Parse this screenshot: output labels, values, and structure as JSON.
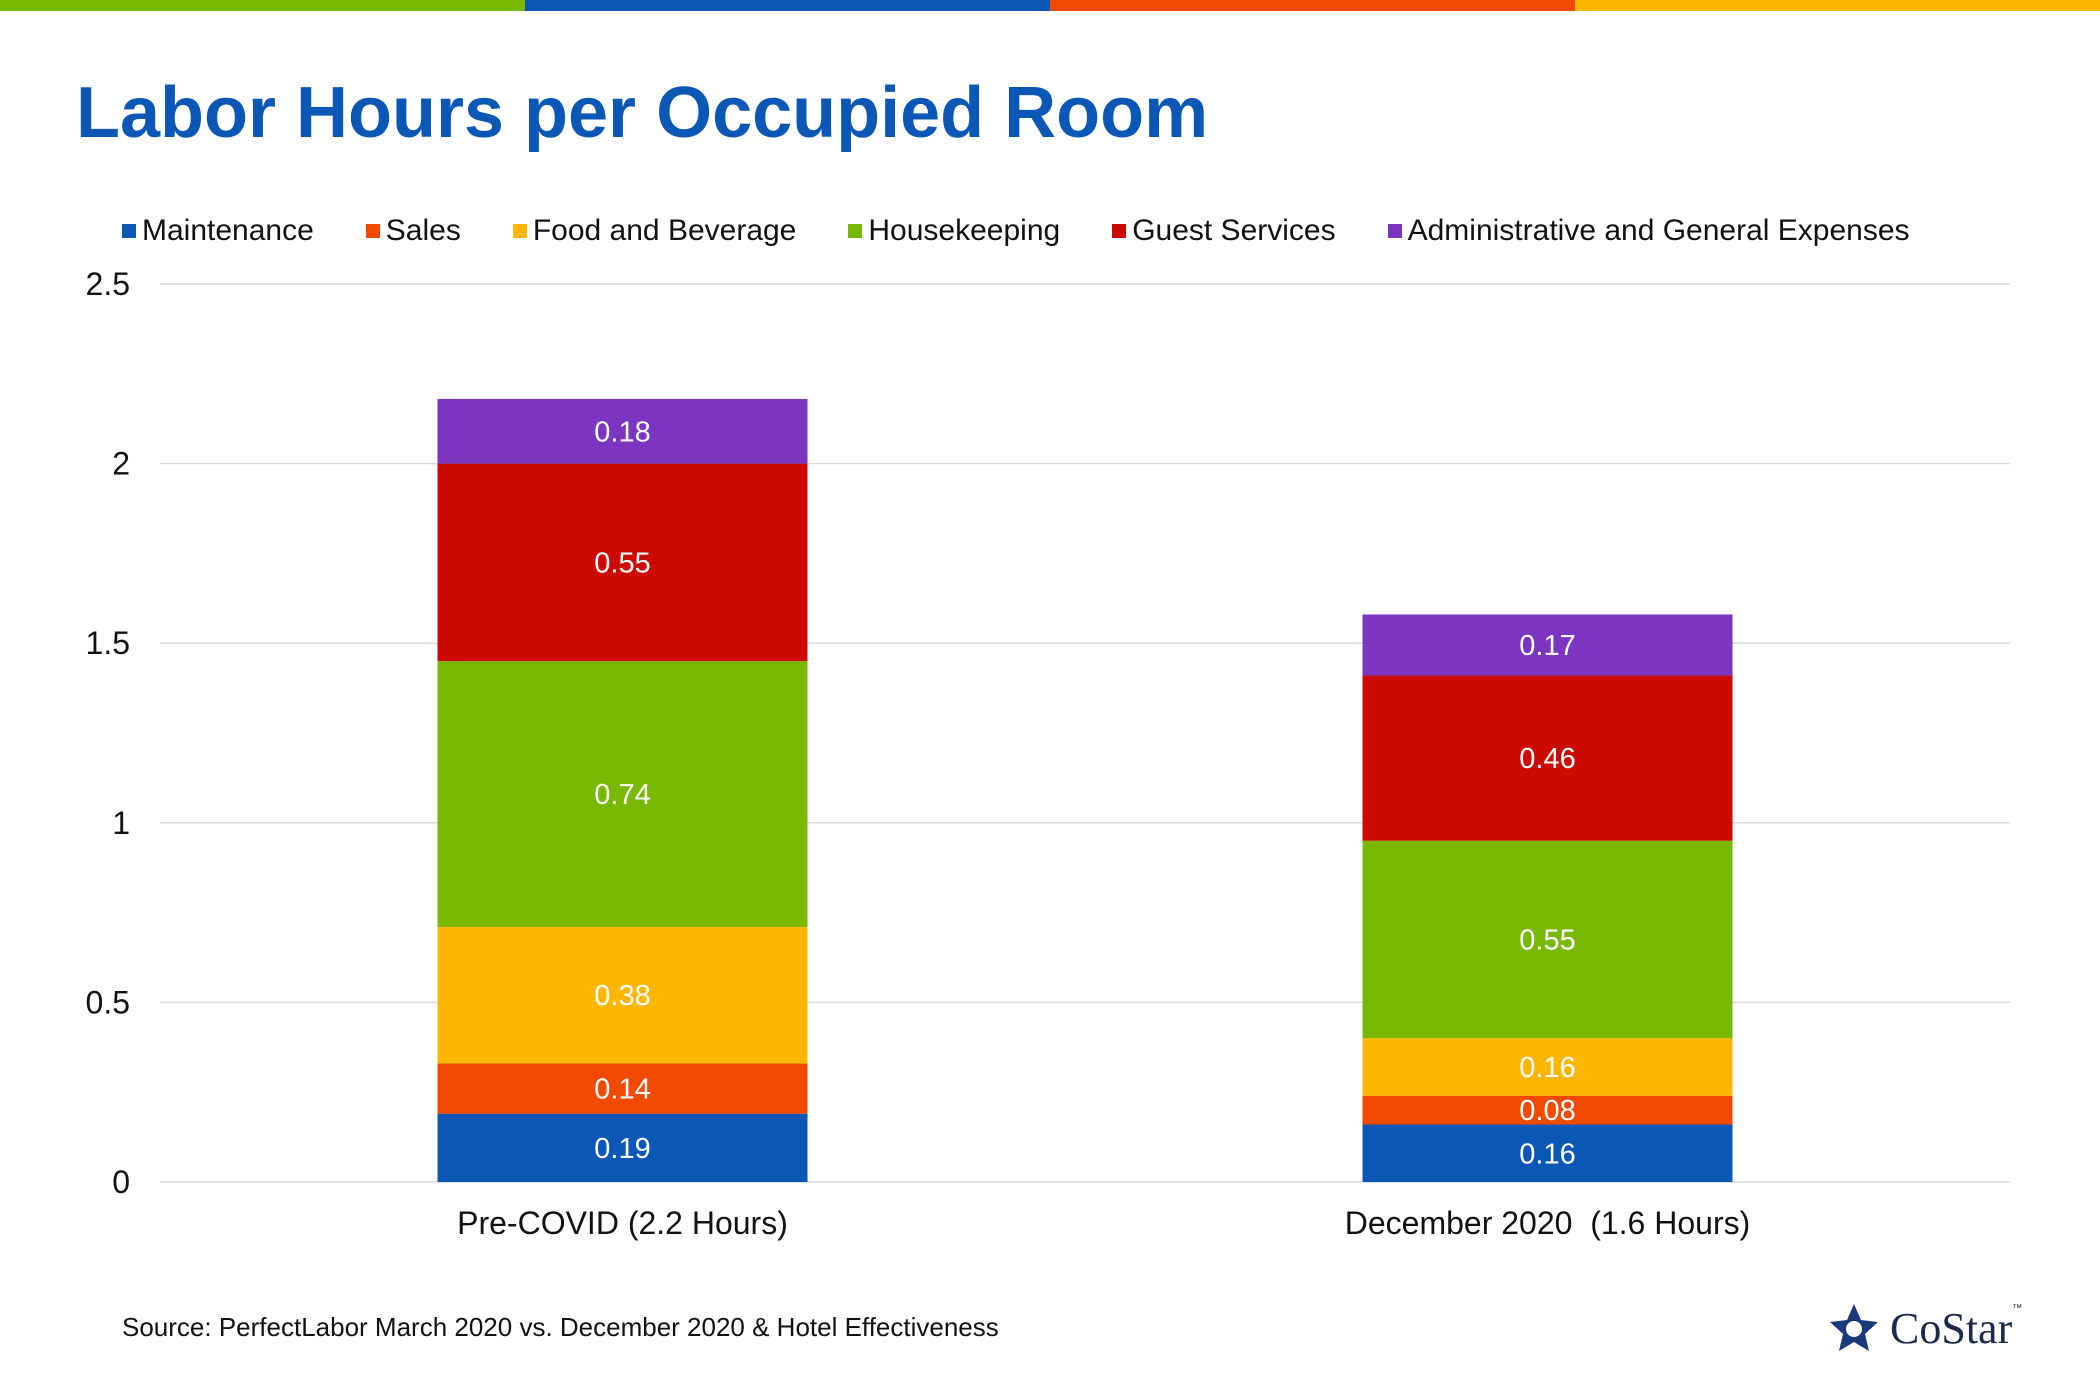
{
  "header": {
    "title": "Labor Hours per Occupied Room"
  },
  "colors": {
    "topbar": [
      "#78b800",
      "#0a57b5",
      "#f04a00",
      "#ffb600"
    ],
    "Maintenance": "#0a57b5",
    "Sales": "#f04a00",
    "Food and Beverage": "#ffb600",
    "Housekeeping": "#78b800",
    "Guest Services": "#cc0a00",
    "Administrative and General Expenses": "#7b35c0",
    "title": "#0a57b5"
  },
  "chart_data": {
    "type": "bar",
    "stacked": true,
    "title": "Labor Hours per Occupied Room",
    "categories": [
      "Pre-COVID (2.2 Hours)",
      "December 2020  (1.6 Hours)"
    ],
    "series": [
      {
        "name": "Maintenance",
        "values": [
          0.19,
          0.16
        ]
      },
      {
        "name": "Sales",
        "values": [
          0.14,
          0.08
        ]
      },
      {
        "name": "Food and Beverage",
        "values": [
          0.38,
          0.16
        ]
      },
      {
        "name": "Housekeeping",
        "values": [
          0.74,
          0.55
        ]
      },
      {
        "name": "Guest Services",
        "values": [
          0.55,
          0.46
        ]
      },
      {
        "name": "Administrative and General Expenses",
        "values": [
          0.18,
          0.17
        ]
      }
    ],
    "yticks": [
      "0",
      "0.5",
      "1",
      "1.5",
      "2",
      "2.5"
    ],
    "ylim": [
      0,
      2.5
    ],
    "grid": true,
    "legend_position": "top",
    "xlabel": "",
    "ylabel": ""
  },
  "footer": {
    "source": "Source: PerfectLabor March 2020 vs. December 2020 & Hotel Effectiveness",
    "logo_text": "CoStar",
    "logo_tm": "™"
  }
}
